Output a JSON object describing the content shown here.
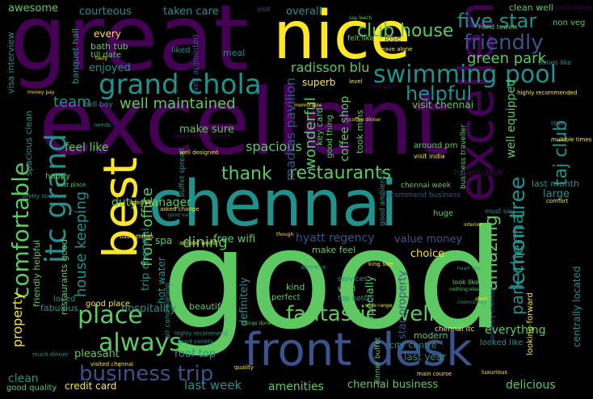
{
  "palette": {
    "background": "#000000",
    "purple": "#440154",
    "indigo": "#3b528b",
    "teal": "#21918c",
    "green": "#5ec962",
    "yellow": "#fde725"
  },
  "words": {
    "great": "great",
    "nice": "nice",
    "excellent": "excellent",
    "chennai": "chennai",
    "good": "good",
    "best": "best",
    "front_desk": "front desk",
    "grand_chola": "grand chola",
    "swimming_pool": "swimming pool",
    "friendly": "friendly",
    "five_star": "five star",
    "club_house": "club house",
    "itc_grand": "itc grand",
    "comfortable": "comfortable",
    "helpful": "helpful",
    "green_park": "green park",
    "radisson_blu": "radisson blu",
    "well_maintained": "well maintained",
    "team": "team",
    "taj_club": "taj club",
    "restaurants": "restaurants",
    "thank": "thank",
    "place": "place",
    "always": "always",
    "business_trip": "business trip",
    "fantastic": "fantastic",
    "well": "well",
    "amazing": "amazing",
    "lemon_tree": "lemon tree",
    "park_chennai": "park chennai",
    "dining": "dining",
    "duty_manager": "duty manager",
    "front_office": "front office",
    "house_keeping": "house keeping",
    "hyatt_regency": "hyatt regency",
    "value_money": "value money",
    "free_wifi": "free wifi",
    "spacious": "spacious",
    "wonderful": "wonderful",
    "madras_pavilion": "madras pavilion",
    "coffee_shop": "coffee shop",
    "well_equipped": "well equipped",
    "visit_chennai": "visit chennai",
    "make_sure": "make sure",
    "feel_like": "feel like",
    "awesome": "awesome",
    "courteous": "courteous",
    "taken_care": "taken care",
    "overall": "overall",
    "clean_well": "clean well",
    "every": "every",
    "bath_tub": "bath tub",
    "enjoyed": "enjoyed",
    "meal": "meal",
    "superb": "superb",
    "bell_boy": "bell boy",
    "trip_chennai": "trip chennai",
    "hot_water": "hot water",
    "spa": "spa",
    "property": "property",
    "friendly_helpful": "friendly helpful",
    "restaurants_good": "restaurants good",
    "good_place": "good place",
    "hospitality": "hospitality",
    "pleasant": "pleasant",
    "roof_top": "roof top",
    "last_week": "last week",
    "credit_card": "credit card",
    "clean": "clean",
    "amenities": "amenities",
    "chennai_business": "chennai business",
    "delicious": "delicious",
    "last_year": "last year",
    "everything": "everything",
    "large": "large",
    "last_month": "last month",
    "centrally_located": "centrally located",
    "make_feel": "make feel",
    "definitely": "definitely",
    "beautiful": "beautiful",
    "perfect": "perfect",
    "kind": "kind",
    "wi_fi": "wi fi",
    "top_notch": "top notch",
    "especially": "especially",
    "star_property": "star property",
    "modern": "modern",
    "city_centre": "city centre",
    "good_quality": "good quality",
    "fabulous": "fabulous",
    "loved": "loved",
    "happy": "happy",
    "travel_desk": "travel desk",
    "huge": "huge",
    "choice": "choice",
    "key_card": "key card",
    "good_thing": "good thing",
    "took_mins": "took mins",
    "around_pm": "around pm",
    "visit_india": "visit india",
    "visa_interview": "visa interview",
    "banquet_hall": "banquet hall",
    "well_appointed": "well appointed",
    "north_indian": "north indian",
    "non_veg": "non veg",
    "liked": "liked",
    "till_date": "till date",
    "lose": "lose",
    "felt_like": "felt like",
    "things_like": "things like",
    "leave_alone": "leave alone",
    "visit": "visit",
    "level": "level",
    "best_part": "best part",
    "needs": "needs",
    "little": "little",
    "multiple_times": "multiple times",
    "around_world": "around world",
    "must_say": "must say",
    "look_like": "look like",
    "looked_like": "looked like",
    "king_size": "king size",
    "chennai_week": "chennai week",
    "business_traveller": "business traveller",
    "good_ambience": "good ambience",
    "main_course": "main course",
    "chennai_itc": "chennai itc",
    "luxurious": "luxurious",
    "clean_comfortable": "clean comfortable",
    "recommend_business": "recommend business",
    "quality": "quality",
    "visited_chennai": "visited chennai",
    "much_dinner": "much dinner",
    "dinner_buffet": "dinner buffet",
    "heart_city": "heart city",
    "chennai_city": "chennai city",
    "highly_recommend": "highly recommend",
    "good_variety": "good variety",
    "air_conditioning": "air conditioning",
    "nothing_else": "nothing else",
    "regency_chennai": "regency chennai",
    "looking_forward": "looking forward",
    "specially": "specially",
    "basic_things": "basic things",
    "services": "services",
    "attentive": "attentive",
    "sri_lanka": "sri lanka",
    "money_pay": "money pay",
    "spacious_clean": "spacious clean",
    "shuttle_service": "shuttle service",
    "pretty_standard": "pretty standard",
    "best_place": "best place",
    "comfort": "comfort",
    "trip_advisor": "trip advisor",
    "highly_recommended": "highly recommended",
    "hand_towels": "hand towels",
    "say_leech": "say leech",
    "interior": "interior",
    "coffee_dinner": "coffee dinner",
    "memorable": "memorable",
    "well_designed": "well designed",
    "buffet_spread": "buffet spread",
    "special_thank": "special thank",
    "needs_improvement": "needs improvement",
    "tasty": "tasty",
    "though": "though",
    "wide_range": "wide range",
    "short": "short",
    "thing_done": "thing done",
    "business_travel": "business travel",
    "cup_coffee": "cup coffee",
    "asked_change": "asked change",
    "good_value": "good value",
    "great_location": "great location",
    "things_done": "things done"
  }
}
